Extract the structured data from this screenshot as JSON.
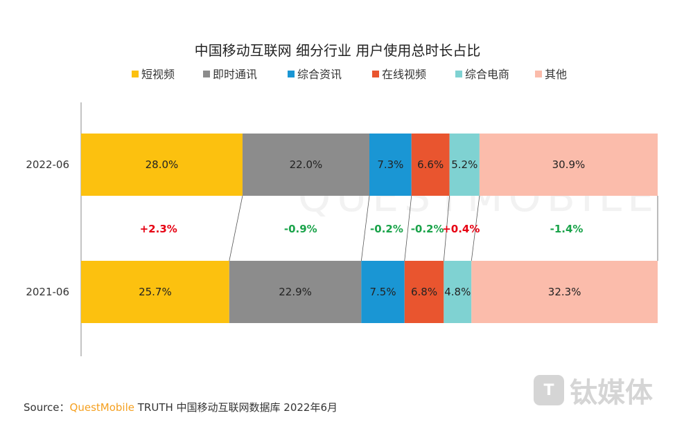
{
  "chart_data": {
    "type": "bar",
    "orientation": "horizontal-stacked-100",
    "title": "中国移动互联网 细分行业 用户使用总时长占比",
    "legend_position": "top",
    "categories": [
      "2022-06",
      "2021-06"
    ],
    "series": [
      {
        "name": "短视频",
        "values": [
          28.0,
          25.7
        ],
        "color": "#fcc10f",
        "change": "+2.3%"
      },
      {
        "name": "即时通讯",
        "values": [
          22.0,
          22.9
        ],
        "color": "#8c8c8c",
        "change": "-0.9%"
      },
      {
        "name": "综合资讯",
        "values": [
          7.3,
          7.5
        ],
        "color": "#1a96d4",
        "change": "-0.2%"
      },
      {
        "name": "在线视频",
        "values": [
          6.6,
          6.8
        ],
        "color": "#e9552f",
        "change": "-0.2%"
      },
      {
        "name": "综合电商",
        "values": [
          5.2,
          4.8
        ],
        "color": "#7fd2d2",
        "change": "+0.4%"
      },
      {
        "name": "其他",
        "values": [
          30.9,
          32.3
        ],
        "color": "#fbbcab",
        "change": "-1.4%"
      }
    ],
    "labels": [
      [
        "28.0%",
        "22.0%",
        "7.3%",
        "6.6%",
        "5.2%",
        "30.9%"
      ],
      [
        "25.7%",
        "22.9%",
        "7.5%",
        "6.8%",
        "4.8%",
        "32.3%"
      ]
    ],
    "change_colors": {
      "positive": "#e60012",
      "negative": "#1aa34a"
    }
  },
  "source": {
    "prefix": "Source：",
    "brand": "QuestMobile",
    "rest": " TRUTH 中国移动互联网数据库 2022年6月"
  },
  "watermark": {
    "logo_text": "钛媒体",
    "logo_mark": "T",
    "bg_text": "QUESTMOBILE"
  }
}
